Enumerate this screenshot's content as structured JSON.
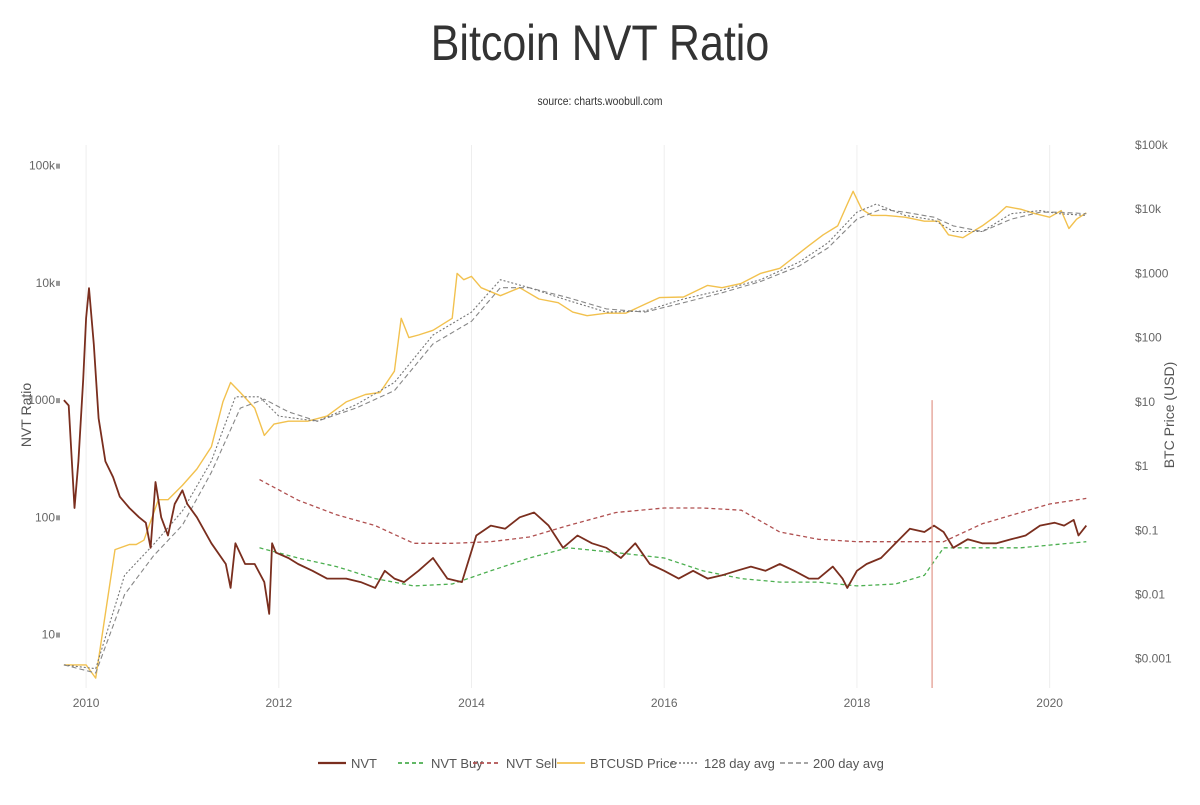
{
  "title": "Bitcoin NVT Ratio",
  "subtitle": "source: charts.woobull.com",
  "colors": {
    "nvt": "#7a2e1e",
    "nvt_buy": "#4caf50",
    "nvt_sell": "#b05050",
    "btc_price": "#f2c14e",
    "avg128": "#777777",
    "avg200": "#888888",
    "marker": "#e0968a",
    "grid": "#eeeeee"
  },
  "chart_data": {
    "type": "line",
    "title": "Bitcoin NVT Ratio",
    "subtitle": "source: charts.woobull.com",
    "xlabel": "",
    "ylabel_left": "NVT Ratio",
    "ylabel_right": "BTC Price (USD)",
    "xlim": [
      2009.75,
      2020.45
    ],
    "ylim_left": [
      3.5,
      150000
    ],
    "ylim_right": [
      0.00035,
      100000
    ],
    "y_scale": "log",
    "x_ticks": [
      "2010",
      "2012",
      "2014",
      "2016",
      "2018",
      "2020"
    ],
    "x_tick_values": [
      2010,
      2012,
      2014,
      2016,
      2018,
      2020
    ],
    "left_ticks": [
      "10",
      "100",
      "1000",
      "10k",
      "100k"
    ],
    "left_tick_values": [
      10,
      100,
      1000,
      10000,
      100000
    ],
    "right_ticks": [
      "$0.001",
      "$0.01",
      "$0.1",
      "$1",
      "$10",
      "$100",
      "$1000",
      "$10k",
      "$100k"
    ],
    "right_tick_values": [
      0.001,
      0.01,
      0.1,
      1,
      10,
      100,
      1000,
      10000,
      100000
    ],
    "grid": "vertical",
    "legend_position": "bottom-center",
    "marker_line": {
      "x": 2018.78,
      "y_top": 1000
    },
    "series": [
      {
        "name": "NVT",
        "axis": "left",
        "x": [
          2009.77,
          2009.82,
          2009.88,
          2009.92,
          2009.97,
          2010.0,
          2010.03,
          2010.08,
          2010.13,
          2010.2,
          2010.28,
          2010.35,
          2010.45,
          2010.55,
          2010.62,
          2010.67,
          2010.72,
          2010.78,
          2010.85,
          2010.92,
          2011.0,
          2011.05,
          2011.15,
          2011.3,
          2011.45,
          2011.5,
          2011.55,
          2011.65,
          2011.75,
          2011.85,
          2011.9,
          2011.93,
          2011.97,
          2012.1,
          2012.2,
          2012.35,
          2012.5,
          2012.7,
          2012.85,
          2013.0,
          2013.1,
          2013.2,
          2013.3,
          2013.45,
          2013.6,
          2013.75,
          2013.9,
          2014.05,
          2014.2,
          2014.35,
          2014.5,
          2014.65,
          2014.8,
          2014.95,
          2015.1,
          2015.25,
          2015.4,
          2015.55,
          2015.7,
          2015.85,
          2016.0,
          2016.15,
          2016.3,
          2016.45,
          2016.6,
          2016.75,
          2016.9,
          2017.05,
          2017.2,
          2017.35,
          2017.5,
          2017.6,
          2017.75,
          2017.85,
          2017.9,
          2018.0,
          2018.1,
          2018.25,
          2018.4,
          2018.55,
          2018.7,
          2018.8,
          2018.9,
          2019.0,
          2019.15,
          2019.3,
          2019.45,
          2019.6,
          2019.75,
          2019.9,
          2020.05,
          2020.15,
          2020.25,
          2020.3,
          2020.38
        ],
        "values": [
          1000,
          900,
          120,
          300,
          1500,
          5000,
          9000,
          3000,
          700,
          300,
          220,
          150,
          120,
          100,
          90,
          55,
          200,
          100,
          70,
          130,
          170,
          130,
          100,
          60,
          40,
          25,
          60,
          40,
          40,
          28,
          15,
          60,
          50,
          45,
          40,
          35,
          30,
          30,
          28,
          25,
          35,
          30,
          28,
          35,
          45,
          30,
          28,
          70,
          85,
          80,
          100,
          110,
          85,
          55,
          70,
          60,
          55,
          45,
          60,
          40,
          35,
          30,
          35,
          30,
          32,
          35,
          38,
          35,
          40,
          35,
          30,
          30,
          38,
          30,
          25,
          35,
          40,
          45,
          60,
          80,
          75,
          85,
          75,
          55,
          65,
          60,
          60,
          65,
          70,
          85,
          90,
          85,
          95,
          70,
          85
        ]
      },
      {
        "name": "NVT Buy",
        "axis": "left",
        "x": [
          2011.8,
          2012.2,
          2012.6,
          2013.0,
          2013.4,
          2013.8,
          2014.2,
          2014.6,
          2015.0,
          2015.5,
          2016.0,
          2016.4,
          2016.8,
          2017.2,
          2017.6,
          2018.0,
          2018.4,
          2018.7,
          2018.9,
          2019.3,
          2019.7,
          2020.0,
          2020.38
        ],
        "values": [
          55,
          45,
          38,
          30,
          26,
          27,
          35,
          45,
          55,
          50,
          45,
          35,
          30,
          28,
          28,
          26,
          27,
          32,
          55,
          55,
          55,
          58,
          62
        ]
      },
      {
        "name": "NVT Sell",
        "axis": "left",
        "x": [
          2011.8,
          2012.2,
          2012.6,
          2013.0,
          2013.4,
          2013.8,
          2014.2,
          2014.6,
          2015.0,
          2015.5,
          2016.0,
          2016.4,
          2016.8,
          2017.2,
          2017.6,
          2018.0,
          2018.4,
          2018.7,
          2018.9,
          2019.3,
          2019.7,
          2020.0,
          2020.38
        ],
        "values": [
          210,
          140,
          105,
          85,
          60,
          60,
          62,
          68,
          85,
          110,
          120,
          120,
          115,
          75,
          65,
          62,
          62,
          62,
          62,
          88,
          110,
          130,
          145
        ]
      },
      {
        "name": "BTCUSD Price",
        "axis": "right",
        "x": [
          2009.77,
          2010.0,
          2010.1,
          2010.3,
          2010.45,
          2010.52,
          2010.6,
          2010.75,
          2010.85,
          2011.0,
          2011.15,
          2011.3,
          2011.42,
          2011.5,
          2011.6,
          2011.75,
          2011.85,
          2011.95,
          2012.1,
          2012.3,
          2012.5,
          2012.7,
          2012.9,
          2013.05,
          2013.2,
          2013.27,
          2013.35,
          2013.45,
          2013.6,
          2013.8,
          2013.85,
          2013.92,
          2014.0,
          2014.1,
          2014.3,
          2014.5,
          2014.7,
          2014.9,
          2015.05,
          2015.2,
          2015.4,
          2015.6,
          2015.8,
          2015.95,
          2016.2,
          2016.45,
          2016.6,
          2016.8,
          2017.0,
          2017.2,
          2017.35,
          2017.5,
          2017.65,
          2017.8,
          2017.9,
          2017.96,
          2018.05,
          2018.15,
          2018.3,
          2018.5,
          2018.7,
          2018.85,
          2018.95,
          2019.1,
          2019.3,
          2019.45,
          2019.55,
          2019.7,
          2019.85,
          2020.0,
          2020.12,
          2020.2,
          2020.28,
          2020.38
        ],
        "values": [
          0.0008,
          0.0008,
          0.0005,
          0.05,
          0.06,
          0.06,
          0.07,
          0.3,
          0.3,
          0.5,
          0.9,
          2,
          10,
          20,
          14,
          8,
          3,
          4.5,
          5,
          5,
          6,
          10,
          13,
          14,
          30,
          200,
          100,
          110,
          130,
          200,
          1000,
          800,
          900,
          600,
          450,
          600,
          400,
          350,
          250,
          220,
          240,
          240,
          330,
          420,
          430,
          650,
          600,
          700,
          1000,
          1200,
          1800,
          2700,
          4000,
          5500,
          12000,
          19000,
          10000,
          8000,
          8000,
          7500,
          6500,
          6500,
          4000,
          3600,
          5500,
          8000,
          11000,
          10000,
          8500,
          7500,
          9500,
          5000,
          7000,
          8800
        ]
      },
      {
        "name": "128 day avg",
        "axis": "right",
        "x": [
          2009.77,
          2010.1,
          2010.4,
          2010.7,
          2011.0,
          2011.3,
          2011.55,
          2011.8,
          2012.0,
          2012.4,
          2012.8,
          2013.2,
          2013.6,
          2014.0,
          2014.3,
          2014.6,
          2015.0,
          2015.4,
          2015.8,
          2016.2,
          2016.6,
          2017.0,
          2017.4,
          2017.7,
          2018.0,
          2018.2,
          2018.5,
          2018.8,
          2019.0,
          2019.3,
          2019.6,
          2019.9,
          2020.1,
          2020.38
        ],
        "values": [
          0.0008,
          0.0007,
          0.02,
          0.06,
          0.2,
          1.2,
          12,
          12,
          6,
          5,
          9,
          20,
          110,
          250,
          800,
          600,
          380,
          250,
          260,
          400,
          550,
          800,
          1500,
          3000,
          9000,
          12000,
          8000,
          6800,
          4500,
          4500,
          8500,
          9500,
          8500,
          8000
        ]
      },
      {
        "name": "200 day avg",
        "axis": "right",
        "x": [
          2009.77,
          2010.1,
          2010.4,
          2010.7,
          2011.0,
          2011.3,
          2011.6,
          2011.85,
          2012.1,
          2012.4,
          2012.8,
          2013.2,
          2013.6,
          2014.0,
          2014.3,
          2014.6,
          2015.0,
          2015.4,
          2015.8,
          2016.2,
          2016.6,
          2017.0,
          2017.4,
          2017.7,
          2018.0,
          2018.25,
          2018.5,
          2018.8,
          2019.0,
          2019.3,
          2019.6,
          2019.9,
          2020.1,
          2020.38
        ],
        "values": [
          0.0008,
          0.0006,
          0.01,
          0.04,
          0.12,
          0.8,
          8,
          11,
          7,
          5,
          8,
          15,
          80,
          180,
          600,
          600,
          420,
          280,
          250,
          350,
          500,
          750,
          1300,
          2500,
          7000,
          10000,
          9000,
          7500,
          5500,
          4500,
          7000,
          9000,
          9000,
          8500
        ]
      }
    ]
  }
}
